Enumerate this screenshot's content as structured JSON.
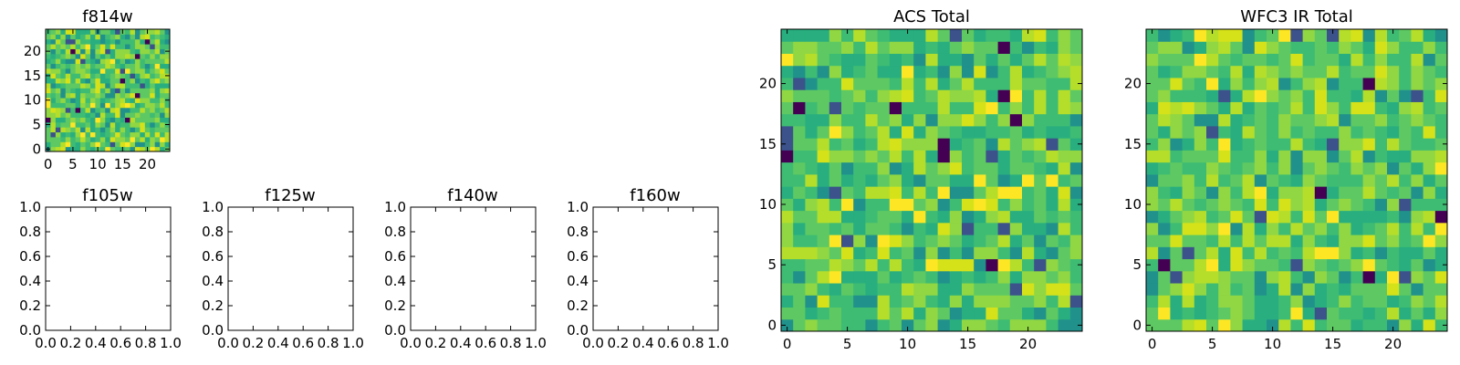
{
  "chart_data": [
    {
      "type": "heatmap",
      "title": "f814w",
      "grid_size": 25,
      "xticks": [
        "0",
        "5",
        "10",
        "15",
        "20"
      ],
      "yticks": [
        "0",
        "5",
        "10",
        "15",
        "20"
      ],
      "xlim": [
        -0.5,
        24.5
      ],
      "ylim": [
        -0.5,
        24.5
      ],
      "colormap": "viridis",
      "pixel_values": "random noise"
    },
    {
      "type": "empty",
      "title": "f105w",
      "xticks": [
        "0.0",
        "0.2",
        "0.4",
        "0.6",
        "0.8",
        "1.0"
      ],
      "yticks": [
        "0.0",
        "0.2",
        "0.4",
        "0.6",
        "0.8",
        "1.0"
      ],
      "xlim": [
        0,
        1
      ],
      "ylim": [
        0,
        1
      ]
    },
    {
      "type": "empty",
      "title": "f125w",
      "xticks": [
        "0.0",
        "0.2",
        "0.4",
        "0.6",
        "0.8",
        "1.0"
      ],
      "yticks": [
        "0.0",
        "0.2",
        "0.4",
        "0.6",
        "0.8",
        "1.0"
      ],
      "xlim": [
        0,
        1
      ],
      "ylim": [
        0,
        1
      ]
    },
    {
      "type": "empty",
      "title": "f140w",
      "xticks": [
        "0.0",
        "0.2",
        "0.4",
        "0.6",
        "0.8",
        "1.0"
      ],
      "yticks": [
        "0.0",
        "0.2",
        "0.4",
        "0.6",
        "0.8",
        "1.0"
      ],
      "xlim": [
        0,
        1
      ],
      "ylim": [
        0,
        1
      ]
    },
    {
      "type": "empty",
      "title": "f160w",
      "xticks": [
        "0.0",
        "0.2",
        "0.4",
        "0.6",
        "0.8",
        "1.0"
      ],
      "yticks": [
        "0.0",
        "0.2",
        "0.4",
        "0.6",
        "0.8",
        "1.0"
      ],
      "xlim": [
        0,
        1
      ],
      "ylim": [
        0,
        1
      ]
    },
    {
      "type": "heatmap",
      "title": "ACS Total",
      "grid_size": 25,
      "xticks": [
        "0",
        "5",
        "10",
        "15",
        "20"
      ],
      "yticks": [
        "0",
        "5",
        "10",
        "15",
        "20"
      ],
      "xlim": [
        -0.5,
        24.5
      ],
      "ylim": [
        -0.5,
        24.5
      ],
      "colormap": "viridis",
      "pixel_values": "random noise"
    },
    {
      "type": "heatmap",
      "title": "WFC3 IR Total",
      "grid_size": 25,
      "xticks": [
        "0",
        "5",
        "10",
        "15",
        "20"
      ],
      "yticks": [
        "0",
        "5",
        "10",
        "15",
        "20"
      ],
      "xlim": [
        -0.5,
        24.5
      ],
      "ylim": [
        -0.5,
        24.5
      ],
      "colormap": "viridis",
      "pixel_values": "random noise"
    }
  ]
}
